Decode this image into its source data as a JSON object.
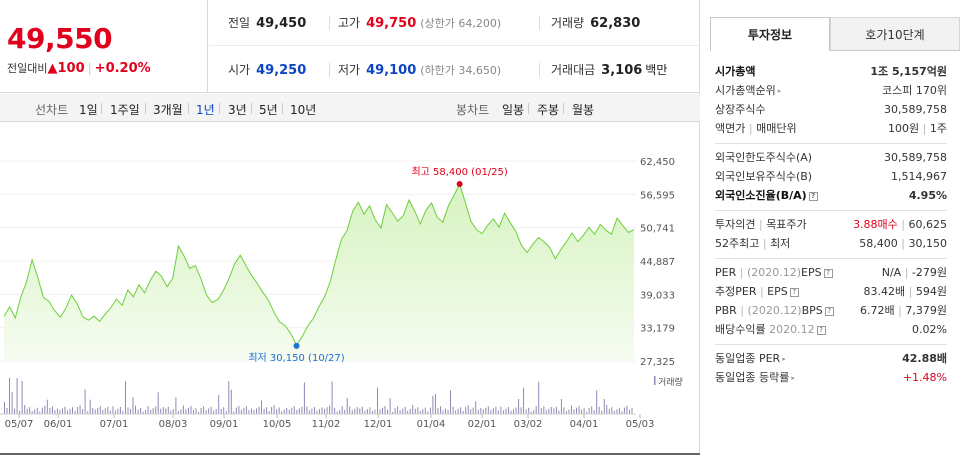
{
  "price": {
    "current": "49,550",
    "change_label": "전일대비",
    "change_arrow": "▲",
    "change_value": "100",
    "change_pct": "+0.20%"
  },
  "stats": {
    "prev_close_label": "전일",
    "prev_close": "49,450",
    "high_label": "고가",
    "high": "49,750",
    "upper_limit": "(상한가 64,200)",
    "volume_label": "거래량",
    "volume": "62,830",
    "open_label": "시가",
    "open": "49,250",
    "low_label": "저가",
    "low": "49,100",
    "lower_limit": "(하한가 34,650)",
    "value_label": "거래대금",
    "value": "3,106",
    "value_unit": "백만"
  },
  "tabs": {
    "line_label": "선차트",
    "line_items": [
      "1일",
      "1주일",
      "3개월",
      "1년",
      "3년",
      "5년",
      "10년"
    ],
    "active": "1년",
    "candle_label": "봉차트",
    "candle_items": [
      "일봉",
      "주봉",
      "월봉"
    ]
  },
  "chart_data": {
    "type": "area",
    "y_ticks": [
      "62,450",
      "56,595",
      "50,741",
      "44,887",
      "39,033",
      "33,179",
      "27,325"
    ],
    "ylim": [
      27325,
      62450
    ],
    "x_ticks": [
      "05/07",
      "06/01",
      "07/01",
      "08/03",
      "09/01",
      "10/05",
      "11/02",
      "12/01",
      "01/04",
      "02/01",
      "03/02",
      "04/01",
      "05/03"
    ],
    "high_annotation": "최고 58,400 (01/25)",
    "low_annotation": "최저 30,150 (10/27)",
    "volume_label": "거래량",
    "colors": {
      "line": "#6ccf3a",
      "fill_top": "#d6f3c0",
      "fill_bottom": "#f6fcf1",
      "high": "#e0001b",
      "low": "#1e6fd6",
      "volume": "#8b8bb5"
    },
    "values": [
      35200,
      36800,
      34900,
      38600,
      41200,
      45100,
      42000,
      38500,
      37800,
      36200,
      35000,
      36600,
      38900,
      37400,
      35100,
      34500,
      35200,
      34300,
      35600,
      36700,
      38200,
      37100,
      39800,
      38600,
      40700,
      39300,
      41500,
      43100,
      42200,
      40400,
      41900,
      47500,
      45800,
      43600,
      44100,
      41800,
      38900,
      37600,
      38100,
      39700,
      41800,
      44400,
      45900,
      44100,
      42400,
      41000,
      39400,
      38000,
      35900,
      34200,
      33500,
      32100,
      30150,
      31600,
      33500,
      34800,
      36900,
      38600,
      41300,
      45200,
      48700,
      50300,
      53700,
      55200,
      53100,
      54600,
      52100,
      50700,
      54800,
      53400,
      51900,
      52900,
      55600,
      53700,
      51400,
      53800,
      55100,
      52600,
      51700,
      54600,
      56400,
      58400,
      55200,
      51900,
      50400,
      49700,
      51200,
      52300,
      50800,
      53300,
      51600,
      50100,
      47600,
      46400,
      47800,
      49000,
      48300,
      47300,
      45300,
      46900,
      48300,
      49800,
      48300,
      49400,
      50800,
      49600,
      51300,
      50300,
      49600,
      52400,
      51100,
      49900,
      50400
    ]
  },
  "right": {
    "tab_active": "투자정보",
    "tab_other": "호가10단계",
    "sections": [
      [
        {
          "k": "시가총액",
          "v": "1조 5,157억원",
          "kb": true,
          "vb": true
        },
        {
          "k": "시가총액순위",
          "v": "코스피 170위",
          "arrow": true
        },
        {
          "k": "상장주식수",
          "v": "30,589,758"
        },
        {
          "k": "액면가",
          "k2": "매매단위",
          "v": "100원",
          "v2": "1주"
        }
      ],
      [
        {
          "k": "외국인한도주식수(A)",
          "v": "30,589,758"
        },
        {
          "k": "외국인보유주식수(B)",
          "v": "1,514,967"
        },
        {
          "k": "외국인소진율(B/A)",
          "v": "4.95%",
          "kb": true,
          "vb": true,
          "icon": true
        }
      ],
      [
        {
          "k": "투자의견",
          "k2": "목표주가",
          "v": "3.88매수",
          "v2": "60,625",
          "vred": true
        },
        {
          "k": "52주최고",
          "k2": "최저",
          "v": "58,400",
          "v2": "30,150"
        }
      ],
      [
        {
          "k": "PER",
          "k2": "EPS",
          "ksub": "(2020.12)",
          "icon": true,
          "v": "N/A",
          "v2": "-279원"
        },
        {
          "k": "추정PER",
          "k2": "EPS",
          "icon": true,
          "v": "83.42배",
          "v2": "594원"
        },
        {
          "k": "PBR",
          "k2": "BPS",
          "ksub": "(2020.12)",
          "icon": true,
          "v": "6.72배",
          "v2": "7,379원"
        },
        {
          "k": "배당수익률",
          "ksub": "2020.12",
          "icon": true,
          "v": "0.02%"
        }
      ],
      [
        {
          "k": "동일업종 PER",
          "v": "42.88배",
          "arrow": true,
          "vb": true
        },
        {
          "k": "동일업종 등락률",
          "v": "+1.48%",
          "arrow": true,
          "vred": true
        }
      ]
    ]
  }
}
